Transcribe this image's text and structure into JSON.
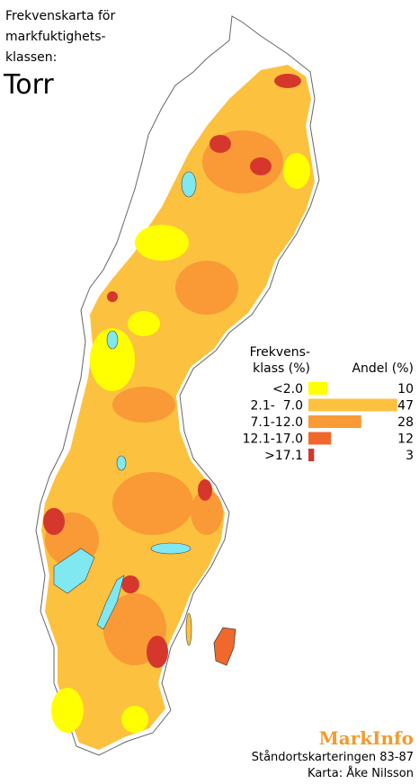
{
  "title": {
    "lines": [
      "Frekvenskarta för",
      "markfuktighets-",
      "klassen:"
    ],
    "subject": "Torr"
  },
  "legend": {
    "header_left": [
      "Frekvens-",
      "klass (%)"
    ],
    "header_right": "Andel (%)",
    "items": [
      {
        "label": "<2.0",
        "value": 10,
        "color": "#ffff00"
      },
      {
        "label": "2.1-  7.0",
        "value": 47,
        "color": "#fcc13f"
      },
      {
        "label": "7.1-12.0",
        "value": 28,
        "color": "#f99a36"
      },
      {
        "label": "12.1-17.0",
        "value": 12,
        "color": "#f0682c"
      },
      {
        "label": ">17.1",
        "value": 3,
        "color": "#d5372c"
      }
    ]
  },
  "credits": {
    "brand": "MarkInfo",
    "lines": [
      "Ståndortskarteringen 83-87",
      "Karta: Åke Nilsson"
    ]
  }
}
